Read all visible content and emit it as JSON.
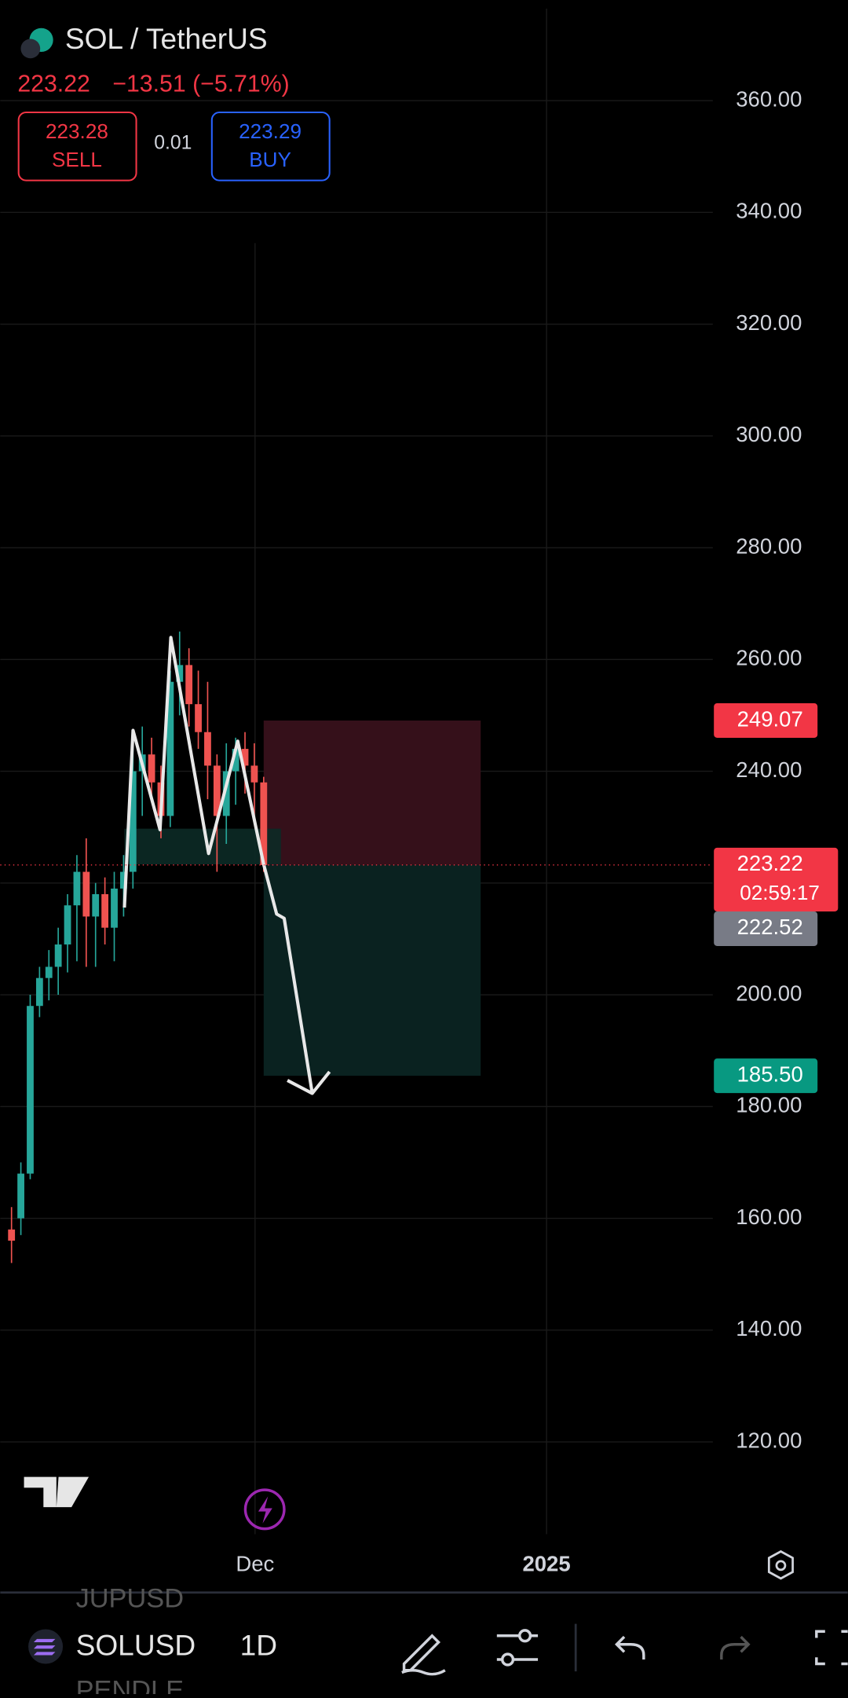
{
  "header": {
    "symbol": "SOL / TetherUS",
    "price": "223.22",
    "change": "−13.51 (−5.71%)",
    "sell_price": "223.28",
    "sell": "SELL",
    "spread": "0.01",
    "buy_price": "223.29",
    "buy": "BUY"
  },
  "chart_data": {
    "type": "candlestick",
    "categories": [
      null,
      null,
      null,
      null,
      null,
      null,
      null,
      null,
      null,
      null,
      null,
      null,
      null,
      null,
      null,
      null,
      null,
      null,
      null,
      null,
      null,
      null,
      null,
      null,
      null,
      null,
      null,
      null
    ],
    "open": [
      158,
      160,
      168,
      198,
      203,
      205,
      209,
      216,
      222,
      214,
      218,
      212,
      219,
      222,
      240,
      243,
      238,
      232,
      256,
      259,
      252,
      247,
      241,
      232,
      240,
      244,
      241,
      238
    ],
    "high": [
      162,
      170,
      200,
      205,
      208,
      212,
      218,
      225,
      228,
      220,
      221,
      222,
      225,
      245,
      248,
      246,
      241,
      258,
      265,
      262,
      258,
      256,
      243,
      245,
      246,
      247,
      245,
      239
    ],
    "low": [
      152,
      157,
      167,
      196,
      199,
      200,
      204,
      206,
      205,
      205,
      209,
      206,
      214,
      219,
      232,
      235,
      228,
      230,
      250,
      248,
      244,
      235,
      222,
      227,
      234,
      236,
      232,
      222
    ],
    "close": [
      156,
      168,
      198,
      203,
      205,
      209,
      216,
      222,
      214,
      218,
      212,
      219,
      222,
      240,
      243,
      238,
      232,
      256,
      259,
      252,
      247,
      241,
      232,
      240,
      244,
      241,
      238,
      223.22
    ],
    "up_color": "#26a69a",
    "down_color": "#ef5350",
    "ylim": [
      100,
      378
    ],
    "yticks": [
      {
        "value": 120,
        "label": "120.00"
      },
      {
        "value": 140,
        "label": "140.00"
      },
      {
        "value": 160,
        "label": "160.00"
      },
      {
        "value": 180,
        "label": "180.00"
      },
      {
        "value": 200,
        "label": "200.00"
      },
      {
        "value": 220,
        "label": "220.00"
      },
      {
        "value": 240,
        "label": "240.00"
      },
      {
        "value": 260,
        "label": "260.00"
      },
      {
        "value": 280,
        "label": "280.00"
      },
      {
        "value": 300,
        "label": "300.00"
      },
      {
        "value": 320,
        "label": "320.00"
      },
      {
        "value": 340,
        "label": "340.00"
      },
      {
        "value": 360,
        "label": "360.00"
      }
    ],
    "hidden_tick": 220,
    "grid": true,
    "x_labels": [
      "Dec",
      "2025"
    ],
    "price_labels": [
      {
        "value": 249.07,
        "label": "249.07",
        "color": "#f23645"
      },
      {
        "value": 223.22,
        "label": "223.22",
        "color": "#f23645"
      },
      {
        "value": 222.52,
        "label": "222.52",
        "color": "#787b86"
      },
      {
        "value": 185.5,
        "label": "185.50",
        "color": "#089981"
      }
    ],
    "countdown": "02:59:17"
  },
  "toolbar": {
    "watch_above": "JUPUSD",
    "symbol": "SOLUSD",
    "watch_below": "PENDLE",
    "timeframe": "1D"
  }
}
